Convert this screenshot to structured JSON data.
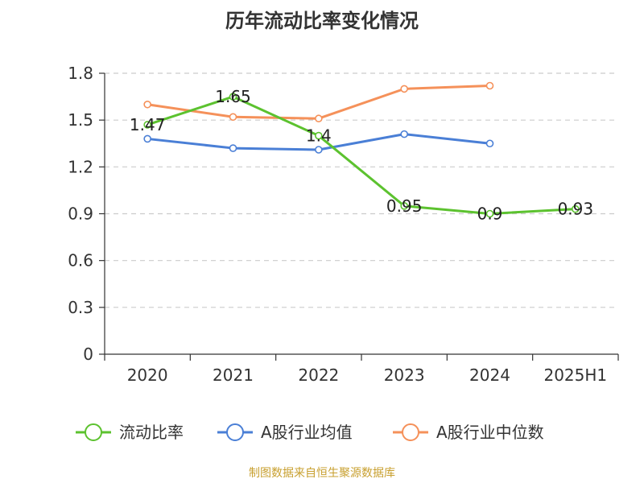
{
  "title": "历年流动比率变化情况",
  "source": "制图数据来自恒生聚源数据库",
  "chart_data": {
    "type": "line",
    "categories": [
      "2020",
      "2021",
      "2022",
      "2023",
      "2024",
      "2025H1"
    ],
    "ylim": [
      0,
      1.8
    ],
    "yticks": [
      "0",
      "0.3",
      "0.6",
      "0.9",
      "1.2",
      "1.5",
      "1.8"
    ],
    "grid": true,
    "legend_position": "bottom",
    "series": [
      {
        "name": "流动比率",
        "color": "#5cc22f",
        "values": [
          1.47,
          1.65,
          1.4,
          0.95,
          0.9,
          0.93
        ],
        "labels": [
          "1.47",
          "1.65",
          "1.4",
          "0.95",
          "0.9",
          "0.93"
        ]
      },
      {
        "name": "A股行业均值",
        "color": "#4a7fd6",
        "values": [
          1.38,
          1.32,
          1.31,
          1.41,
          1.35,
          null
        ]
      },
      {
        "name": "A股行业中位数",
        "color": "#f5915a",
        "values": [
          1.6,
          1.52,
          1.51,
          1.7,
          1.72,
          null
        ]
      }
    ]
  }
}
